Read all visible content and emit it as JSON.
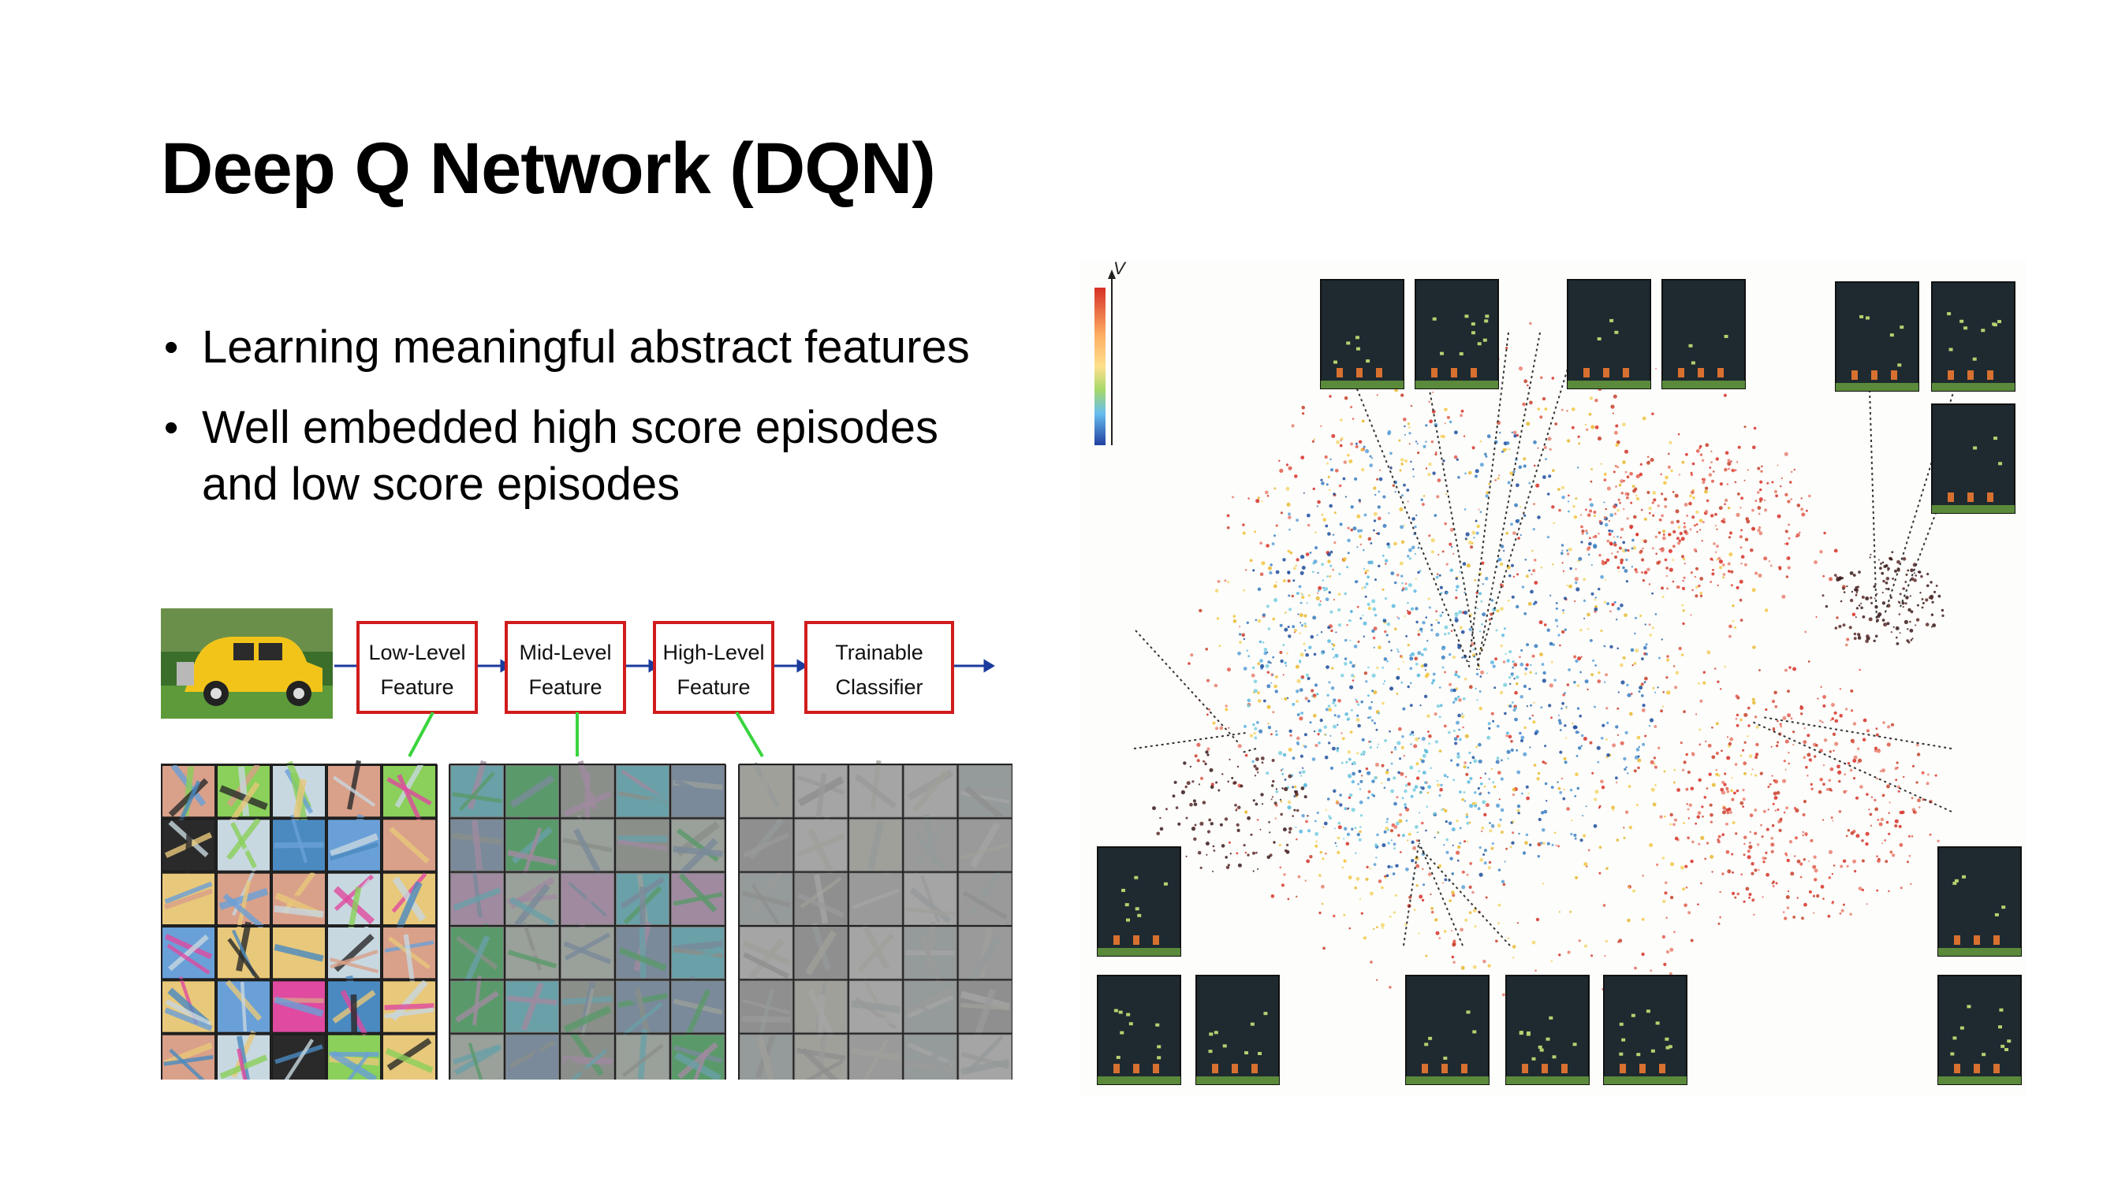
{
  "slide": {
    "title": "Deep Q Network (DQN)",
    "bullets": [
      "Learning meaningful abstract features",
      "Well embedded high score episodes and low score episodes"
    ]
  },
  "pipeline": {
    "stages": [
      {
        "line1": "Low-Level",
        "line2": "Feature"
      },
      {
        "line1": "Mid-Level",
        "line2": "Feature"
      },
      {
        "line1": "High-Level",
        "line2": "Feature"
      },
      {
        "line1": "Trainable",
        "line2": "Classifier"
      }
    ],
    "colors": {
      "box_border": "#d01c1c",
      "arrow": "#1a3a9c",
      "connector": "#39d43d"
    }
  },
  "tsne": {
    "colorbar_label": "V",
    "colors": {
      "high": "#d73027",
      "mid": "#fee08b",
      "low": "#2166ac",
      "outlier": "#3a1a1a"
    }
  }
}
